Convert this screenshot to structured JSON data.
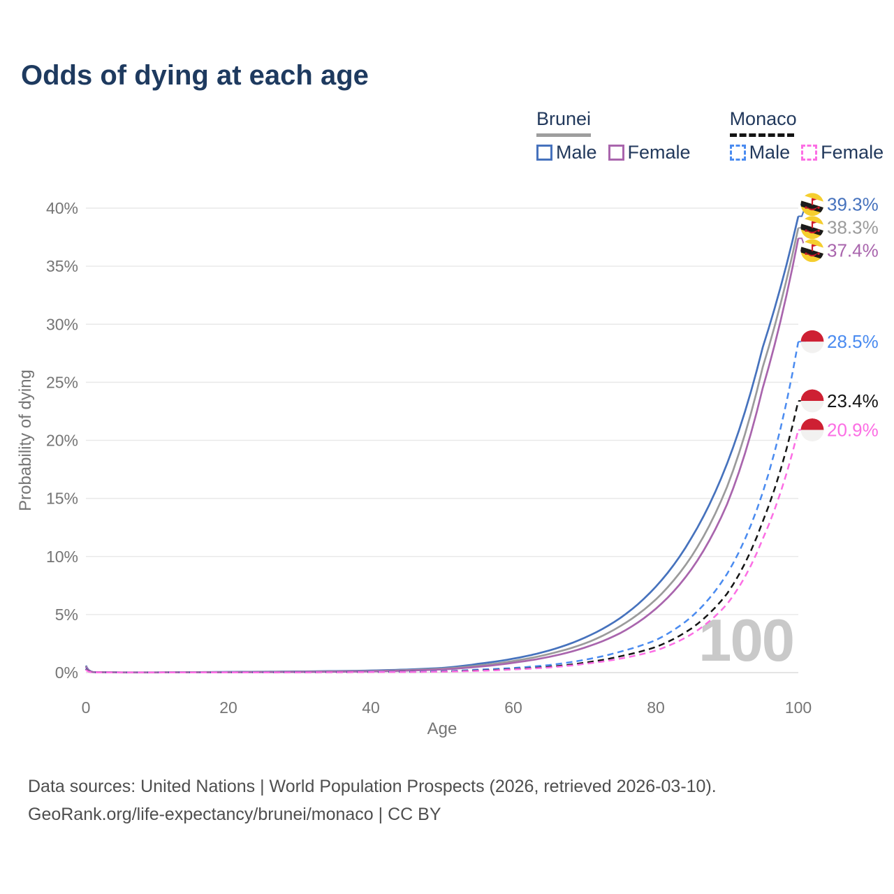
{
  "title": "Odds of dying at each age",
  "legend": {
    "groups": [
      {
        "label": "Brunei",
        "line_style": "solid",
        "underline_color": "#9e9e9e",
        "items": [
          {
            "label": "Male",
            "color": "#4672bd"
          },
          {
            "label": "Female",
            "color": "#a965ad"
          }
        ]
      },
      {
        "label": "Monaco",
        "line_style": "dashed",
        "underline_color": "#141414",
        "items": [
          {
            "label": "Male",
            "color": "#4a8bf0"
          },
          {
            "label": "Female",
            "color": "#fc6ee4"
          }
        ]
      }
    ]
  },
  "watermark": "100",
  "footer": {
    "line1": "Data sources: United Nations | World Population Prospects (2026, retrieved 2026-03-10).",
    "line2": "GeoRank.org/life-expectancy/brunei/monaco | CC BY"
  },
  "theme": {
    "title_color": "#1e3a5f",
    "legend_text_color": "#22395c",
    "axis_text_color": "#757575",
    "grid_color": "#e9e9e9",
    "zero_line_color": "#dcdcdc",
    "watermark_color": "#c9c9c9",
    "footer_color": "#4e4e4e",
    "background": "#ffffff"
  },
  "flag_colors": {
    "brunei": {
      "yellow": "#F5CE2F",
      "white": "#ffffff",
      "black": "#1b1b1b",
      "red": "#CF1B2B"
    },
    "monaco": {
      "red": "#CE2033",
      "white": "#f2f1f0"
    }
  },
  "chart_data": {
    "type": "line",
    "title": "Odds of dying at each age",
    "xlabel": "Age",
    "ylabel": "Probability of dying",
    "xlim": [
      0,
      100
    ],
    "ylim": [
      0,
      40
    ],
    "x_tick_values": [
      0,
      20,
      40,
      60,
      80,
      100
    ],
    "x_tick_labels": [
      "0",
      "20",
      "40",
      "60",
      "80",
      "100"
    ],
    "y_tick_values": [
      0,
      5,
      10,
      15,
      20,
      25,
      30,
      35,
      40
    ],
    "y_tick_labels": [
      "0%",
      "5%",
      "10%",
      "15%",
      "20%",
      "25%",
      "30%",
      "35%",
      "40%"
    ],
    "grid": "horizontal",
    "legend_position": "top-right",
    "unit": "%",
    "ages": [
      0,
      1,
      5,
      10,
      15,
      20,
      25,
      30,
      35,
      40,
      45,
      50,
      55,
      60,
      65,
      70,
      75,
      80,
      85,
      90,
      95,
      100
    ],
    "series": [
      {
        "id": "brunei-male",
        "name": "Brunei Male",
        "country": "Brunei",
        "sex": "Male",
        "color": "#4672bd",
        "dash": "solid",
        "flag": "brunei",
        "end_label": "39.3%",
        "end_value": 39.3,
        "values": [
          0.6,
          0.05,
          0.02,
          0.02,
          0.04,
          0.06,
          0.08,
          0.1,
          0.13,
          0.18,
          0.26,
          0.4,
          0.75,
          1.2,
          1.9,
          3.0,
          4.7,
          7.4,
          11.6,
          18.0,
          28.0,
          39.3
        ]
      },
      {
        "id": "brunei-both",
        "name": "Brunei Both sexes",
        "country": "Brunei",
        "sex": "Both",
        "color": "#9b9b9b",
        "dash": "solid",
        "flag": "brunei",
        "end_label": "38.3%",
        "end_value": 38.3,
        "values": [
          0.55,
          0.04,
          0.02,
          0.02,
          0.03,
          0.045,
          0.06,
          0.08,
          0.1,
          0.14,
          0.21,
          0.33,
          0.6,
          1.0,
          1.6,
          2.5,
          4.0,
          6.3,
          10.0,
          16.0,
          26.3,
          38.3
        ]
      },
      {
        "id": "brunei-female",
        "name": "Brunei Female",
        "country": "Brunei",
        "sex": "Female",
        "color": "#a965ad",
        "dash": "solid",
        "flag": "brunei",
        "end_label": "37.4%",
        "end_value": 37.4,
        "values": [
          0.5,
          0.04,
          0.015,
          0.015,
          0.02,
          0.03,
          0.04,
          0.055,
          0.08,
          0.11,
          0.17,
          0.27,
          0.5,
          0.85,
          1.35,
          2.15,
          3.4,
          5.5,
          8.9,
          14.5,
          24.5,
          37.4
        ]
      },
      {
        "id": "monaco-male",
        "name": "Monaco Male",
        "country": "Monaco",
        "sex": "Male",
        "color": "#4a8bf0",
        "dash": "dashed",
        "flag": "monaco",
        "end_label": "28.5%",
        "end_value": 28.5,
        "values": [
          0.35,
          0.02,
          0.01,
          0.01,
          0.015,
          0.025,
          0.03,
          0.035,
          0.045,
          0.06,
          0.08,
          0.12,
          0.25,
          0.4,
          0.65,
          1.1,
          1.8,
          2.8,
          4.8,
          8.5,
          15.5,
          28.5
        ]
      },
      {
        "id": "monaco-both",
        "name": "Monaco Both sexes",
        "country": "Monaco",
        "sex": "Both",
        "color": "#141414",
        "dash": "dashed",
        "flag": "monaco",
        "end_label": "23.4%",
        "end_value": 23.4,
        "values": [
          0.3,
          0.02,
          0.01,
          0.01,
          0.01,
          0.02,
          0.025,
          0.03,
          0.035,
          0.045,
          0.06,
          0.09,
          0.18,
          0.3,
          0.5,
          0.85,
          1.4,
          2.2,
          3.8,
          6.8,
          13.0,
          23.4
        ]
      },
      {
        "id": "monaco-female",
        "name": "Monaco Female",
        "country": "Monaco",
        "sex": "Female",
        "color": "#fc6ee4",
        "dash": "dashed",
        "flag": "monaco",
        "end_label": "20.9%",
        "end_value": 20.9,
        "values": [
          0.25,
          0.015,
          0.01,
          0.01,
          0.01,
          0.015,
          0.02,
          0.025,
          0.03,
          0.04,
          0.05,
          0.08,
          0.15,
          0.27,
          0.44,
          0.75,
          1.2,
          1.9,
          3.3,
          5.9,
          11.5,
          20.9
        ]
      }
    ]
  }
}
